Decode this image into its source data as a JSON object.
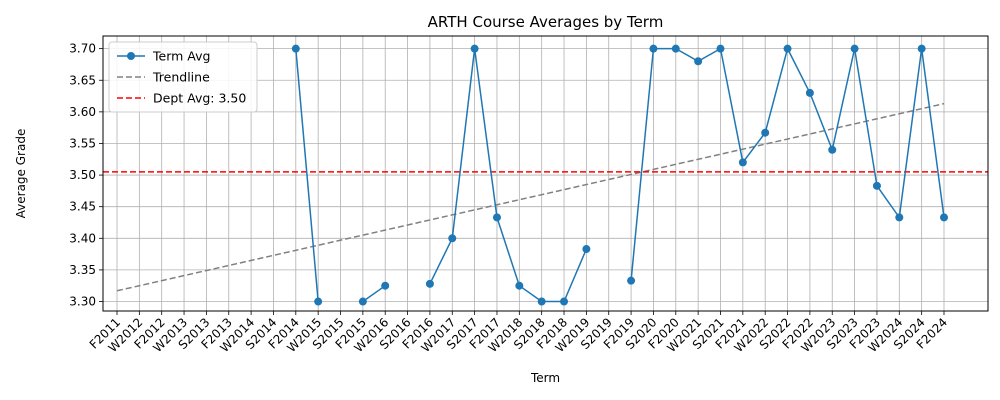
{
  "chart_data": {
    "type": "line",
    "title": "ARTH Course Averages by Term",
    "xlabel": "Term",
    "ylabel": "Average Grade",
    "ylim": [
      3.285,
      3.72
    ],
    "yticks": [
      "3.30",
      "3.35",
      "3.40",
      "3.45",
      "3.50",
      "3.55",
      "3.60",
      "3.65",
      "3.70"
    ],
    "grid": true,
    "legend_position": "top-left",
    "categories": [
      "F2011",
      "W2012",
      "F2012",
      "W2013",
      "S2013",
      "F2013",
      "W2014",
      "S2014",
      "F2014",
      "W2015",
      "S2015",
      "F2015",
      "W2016",
      "S2016",
      "F2016",
      "W2017",
      "S2017",
      "F2017",
      "W2018",
      "S2018",
      "F2018",
      "W2019",
      "S2019",
      "F2019",
      "S2020",
      "F2020",
      "W2021",
      "S2021",
      "F2021",
      "W2022",
      "S2022",
      "F2022",
      "W2023",
      "S2023",
      "F2023",
      "W2024",
      "S2024",
      "F2024"
    ],
    "series": [
      {
        "name": "Term Avg",
        "color": "#1f77b4",
        "style": "solid-markers",
        "values": [
          null,
          null,
          null,
          null,
          null,
          null,
          null,
          null,
          3.7,
          3.3,
          null,
          3.3,
          3.325,
          null,
          3.328,
          3.4,
          3.7,
          3.433,
          3.325,
          3.3,
          3.3,
          3.383,
          null,
          3.333,
          3.7,
          3.7,
          3.68,
          3.7,
          3.52,
          3.567,
          3.7,
          3.63,
          3.54,
          3.7,
          3.483,
          3.433,
          3.7,
          3.433
        ]
      },
      {
        "name": "Trendline",
        "color": "#808080",
        "style": "dashed",
        "start": 3.317,
        "end": 3.613
      },
      {
        "name": "Dept Avg: 3.50",
        "color": "#ff0000",
        "style": "dashed",
        "value": 3.505
      }
    ]
  }
}
